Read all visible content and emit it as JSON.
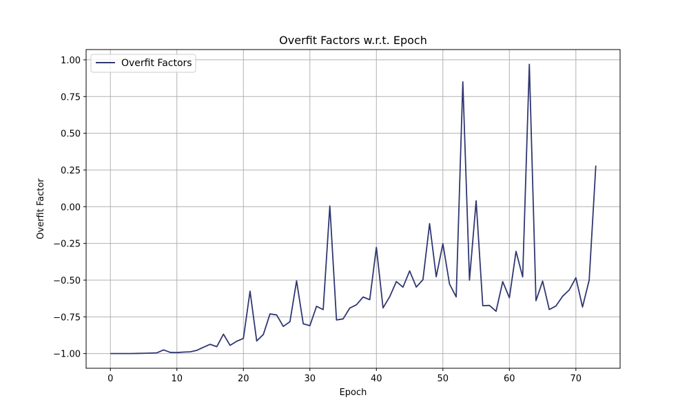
{
  "chart_data": {
    "type": "line",
    "title": "Overfit Factors w.r.t. Epoch",
    "xlabel": "Epoch",
    "ylabel": "Overfit Factor",
    "xlim": [
      -3.65,
      76.65
    ],
    "ylim": [
      -1.1,
      1.07
    ],
    "xticks": [
      0,
      10,
      20,
      30,
      40,
      50,
      60,
      70
    ],
    "yticks": [
      -1.0,
      -0.75,
      -0.5,
      -0.25,
      0.0,
      0.25,
      0.5,
      0.75,
      1.0
    ],
    "yticklabels": [
      "−1.00",
      "−0.75",
      "−0.50",
      "−0.25",
      "0.00",
      "0.25",
      "0.50",
      "0.75",
      "1.00"
    ],
    "grid": true,
    "legend_position": "upper-left",
    "series": [
      {
        "name": "Overfit Factors",
        "color": "#2f3670",
        "x": [
          0,
          1,
          2,
          3,
          4,
          5,
          6,
          7,
          8,
          9,
          10,
          11,
          12,
          13,
          14,
          15,
          16,
          17,
          18,
          19,
          20,
          21,
          22,
          23,
          24,
          25,
          26,
          27,
          28,
          29,
          30,
          31,
          32,
          33,
          34,
          35,
          36,
          37,
          38,
          39,
          40,
          41,
          42,
          43,
          44,
          45,
          46,
          47,
          48,
          49,
          50,
          51,
          52,
          53,
          54,
          55,
          56,
          57,
          58,
          59,
          60,
          61,
          62,
          63,
          64,
          65,
          66,
          67,
          68,
          69,
          70,
          71,
          72,
          73
        ],
        "y": [
          -1.0,
          -1.0,
          -1.0,
          -1.0,
          -0.999,
          -0.998,
          -0.997,
          -0.995,
          -0.975,
          -0.992,
          -0.993,
          -0.99,
          -0.988,
          -0.978,
          -0.957,
          -0.937,
          -0.953,
          -0.868,
          -0.944,
          -0.916,
          -0.897,
          -0.575,
          -0.914,
          -0.87,
          -0.73,
          -0.737,
          -0.815,
          -0.783,
          -0.505,
          -0.797,
          -0.81,
          -0.678,
          -0.701,
          0.005,
          -0.771,
          -0.764,
          -0.69,
          -0.668,
          -0.615,
          -0.633,
          -0.277,
          -0.689,
          -0.613,
          -0.51,
          -0.548,
          -0.437,
          -0.547,
          -0.497,
          -0.115,
          -0.477,
          -0.252,
          -0.527,
          -0.614,
          0.85,
          -0.5,
          0.04,
          -0.674,
          -0.672,
          -0.712,
          -0.51,
          -0.62,
          -0.304,
          -0.478,
          0.97,
          -0.64,
          -0.507,
          -0.7,
          -0.676,
          -0.61,
          -0.567,
          -0.484,
          -0.683,
          -0.5,
          0.28
        ]
      }
    ]
  }
}
